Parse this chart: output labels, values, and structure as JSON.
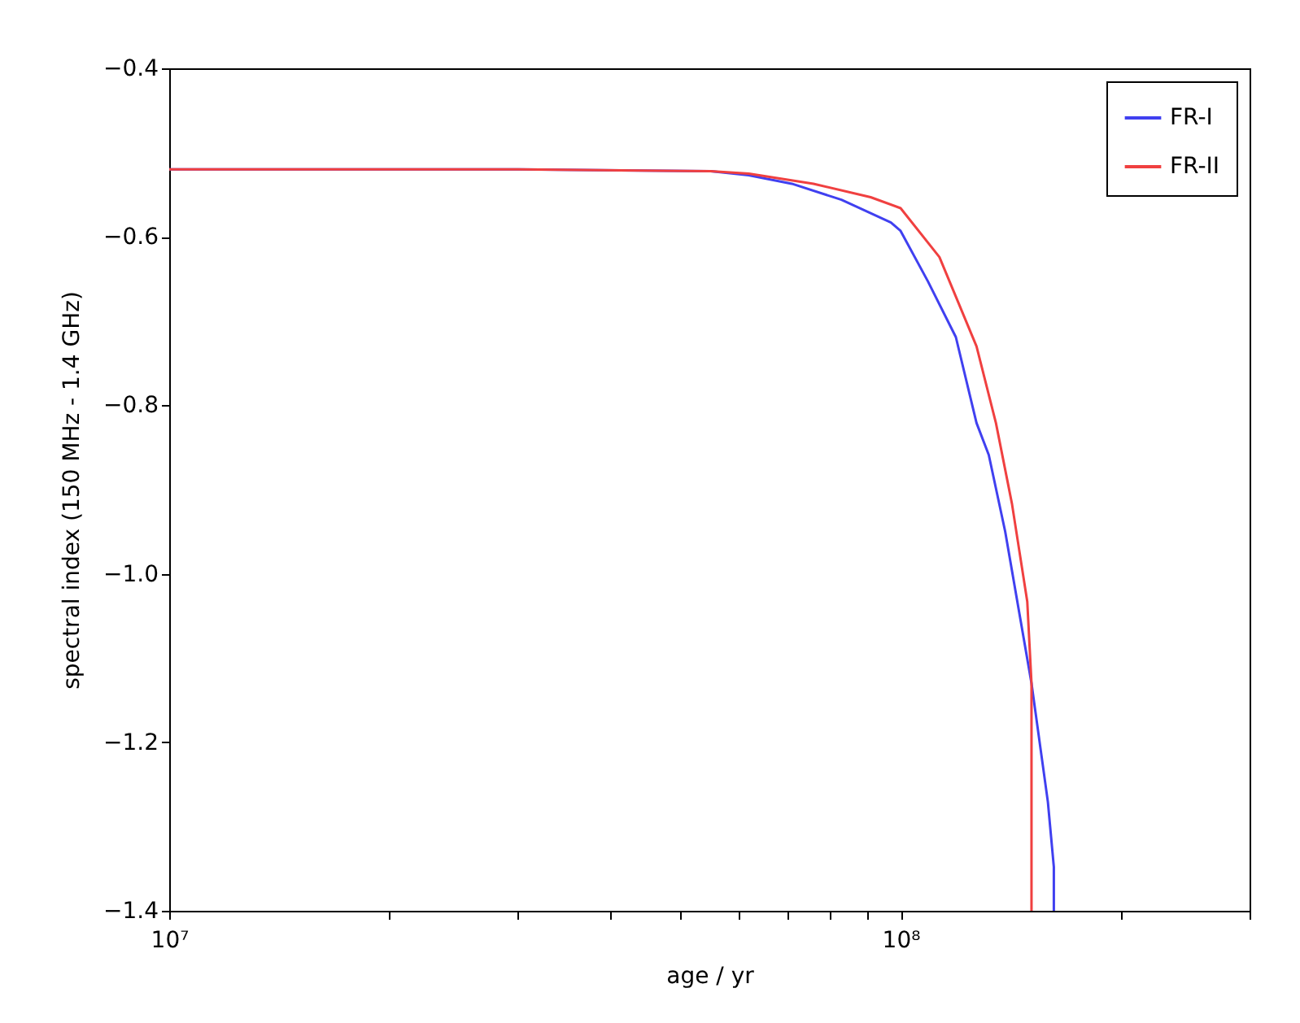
{
  "chart_data": {
    "type": "line",
    "xlabel": "age / yr",
    "ylabel": "spectral index (150 MHz - 1.4 GHz)",
    "log": "x",
    "xlim": [
      10000000,
      300000000
    ],
    "xticks": [
      {
        "value": 10000000,
        "label": "10⁷"
      },
      {
        "value": 20000000,
        "label": null
      },
      {
        "value": 30000000,
        "label": null
      },
      {
        "value": 40000000,
        "label": null
      },
      {
        "value": 50000000,
        "label": null
      },
      {
        "value": 60000000,
        "label": null
      },
      {
        "value": 70000000,
        "label": null
      },
      {
        "value": 80000000,
        "label": null
      },
      {
        "value": 90000000,
        "label": null
      },
      {
        "value": 100000000,
        "label": "10⁸"
      },
      {
        "value": 200000000,
        "label": null
      },
      {
        "value": 300000000,
        "label": null
      }
    ],
    "ylim": [
      -1.4,
      -0.4
    ],
    "yticks": [
      -1.4,
      -1.2,
      {
        "value": -1.0,
        "label": "−1.0"
      },
      -0.8,
      -0.6,
      -0.4
    ],
    "grid": false,
    "legend": "top right",
    "marker": "none",
    "line_style": "solid",
    "series": [
      {
        "name": "FR-I",
        "color": "#4040f0",
        "x": [
          10000000,
          30000000,
          55000000,
          62000000,
          71000000,
          83000000,
          97000000,
          100000000,
          109000000,
          119000000,
          127000000,
          132000000,
          139000000,
          151000000,
          159000000,
          162000000,
          162000000
        ],
        "values": [
          -0.52,
          -0.52,
          -0.522,
          -0.527,
          -0.537,
          -0.556,
          -0.583,
          -0.593,
          -0.653,
          -0.719,
          -0.821,
          -0.859,
          -0.95,
          -1.13,
          -1.271,
          -1.348,
          -1.4
        ]
      },
      {
        "name": "FR-II",
        "color": "#f04040",
        "x": [
          10000000,
          30000000,
          55000000,
          62000000,
          76000000,
          91000000,
          100000000,
          113000000,
          127000000,
          135000000,
          142000000,
          149000000,
          151000000,
          151000000
        ],
        "values": [
          -0.52,
          -0.52,
          -0.522,
          -0.525,
          -0.537,
          -0.553,
          -0.566,
          -0.624,
          -0.73,
          -0.821,
          -0.917,
          -1.033,
          -1.13,
          -1.4
        ]
      }
    ]
  }
}
